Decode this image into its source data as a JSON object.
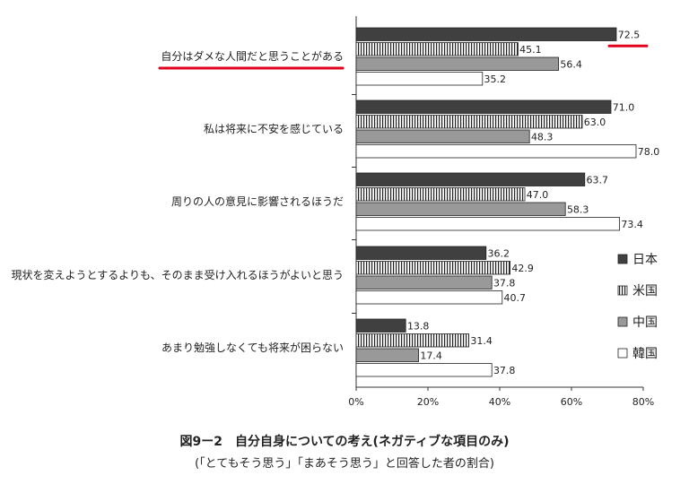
{
  "chart_data": {
    "type": "bar",
    "orientation": "horizontal",
    "categories": [
      "自分はダメな人間だと思うことがある",
      "私は将来に不安を感じている",
      "周りの人の意見に影響されるほうだ",
      "現状を変えようとするよりも、そのまま受け入れるほうがよいと思う",
      "あまり勉強しなくても将来が困らない"
    ],
    "series": [
      {
        "name": "日本",
        "values": [
          72.5,
          71.0,
          63.7,
          36.2,
          13.8
        ],
        "fill": "#404040",
        "pattern": "solid"
      },
      {
        "name": "米国",
        "values": [
          45.1,
          63.0,
          47.0,
          42.9,
          31.4
        ],
        "fill": "#ffffff",
        "pattern": "vertical-stripes"
      },
      {
        "name": "中国",
        "values": [
          56.4,
          48.3,
          58.3,
          37.8,
          17.4
        ],
        "fill": "#999999",
        "pattern": "solid"
      },
      {
        "name": "韓国",
        "values": [
          35.2,
          78.0,
          73.4,
          40.7,
          37.8
        ],
        "fill": "#ffffff",
        "pattern": "outline"
      }
    ],
    "value_labels": [
      [
        "72.5",
        "71.0",
        "63.7",
        "36.2",
        "13.8"
      ],
      [
        "45.1",
        "63.0",
        "47.0",
        "42.9",
        "31.4"
      ],
      [
        "56.4",
        "48.3",
        "58.3",
        "37.8",
        "17.4"
      ],
      [
        "35.2",
        "78.0",
        "73.4",
        "40.7",
        "37.8"
      ]
    ],
    "xlim": [
      0,
      80
    ],
    "xticks": [
      0,
      20,
      40,
      60,
      80
    ],
    "xtick_labels": [
      "0%",
      "20%",
      "40%",
      "60%",
      "80%"
    ],
    "legend_position": "right",
    "highlight": {
      "category_index": 0,
      "value_index": 0,
      "color": "#e0001b"
    }
  },
  "caption": {
    "title": "図9ー2　自分自身についての考え(ネガティブな項目のみ)",
    "subtitle": "(「とてもそう思う」「まあそう思う」と回答した者の割合)"
  }
}
